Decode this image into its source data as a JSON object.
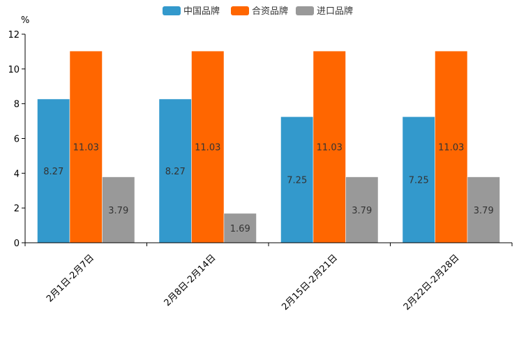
{
  "chart_data": {
    "type": "bar",
    "ylabel": "%",
    "ylim": [
      0,
      12
    ],
    "yticks": [
      0,
      2,
      4,
      6,
      8,
      10,
      12
    ],
    "categories": [
      "2月1日-2月7日",
      "2月8日-2月14日",
      "2月15日-2月21日",
      "2月22日-2月28日"
    ],
    "series": [
      {
        "name": "中国品牌",
        "color": "#3399CC",
        "values": [
          8.27,
          8.27,
          7.25,
          7.25
        ]
      },
      {
        "name": "合资品牌",
        "color": "#FF6600",
        "values": [
          11.03,
          11.03,
          11.03,
          11.03
        ]
      },
      {
        "name": "进口品牌",
        "color": "#999999",
        "values": [
          3.79,
          1.69,
          3.79,
          3.79
        ]
      }
    ],
    "legend": "top-center",
    "grid": false
  }
}
